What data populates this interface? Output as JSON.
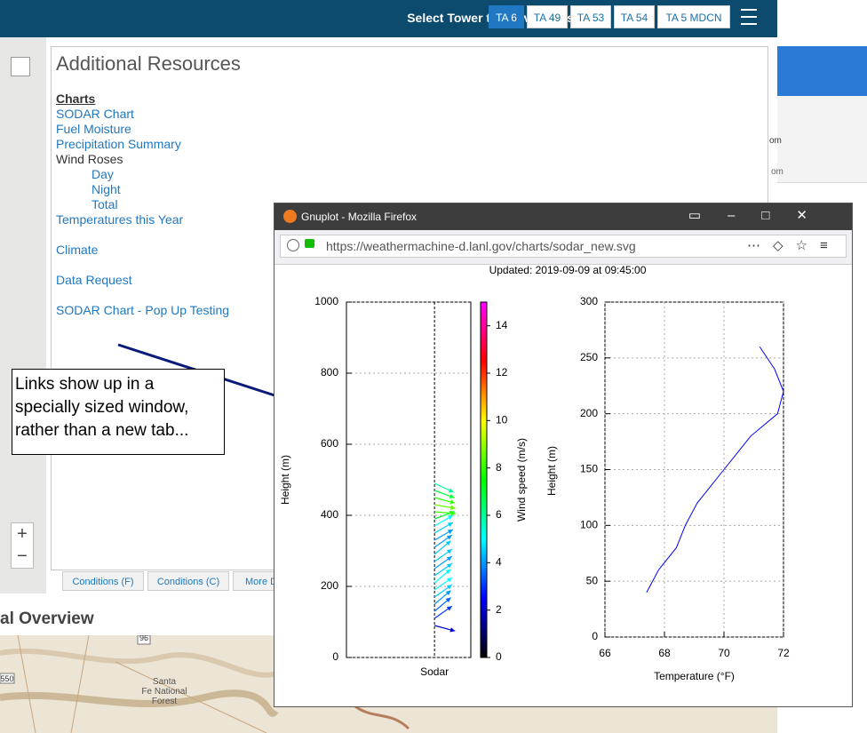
{
  "header": {
    "title": "Select Tower to View Details",
    "towers": [
      "TA 6",
      "TA 49",
      "TA 53",
      "TA 54",
      "TA 5 MDCN"
    ]
  },
  "resources": {
    "title": "Additional Resources",
    "heading": "Charts",
    "links": [
      "SODAR Chart",
      "Fuel Moisture",
      "Precipitation Summary"
    ],
    "wind_roses": {
      "label": "Wind Roses",
      "links": [
        "Day",
        "Night",
        "Total"
      ]
    },
    "temperatures": "Temperatures this Year",
    "climate": "Climate",
    "data_request": "Data Request",
    "popup_test": "SODAR Chart - Pop Up Testing"
  },
  "tabs": [
    "Conditions (F)",
    "Conditions (C)",
    "More D"
  ],
  "overview": {
    "title": "al Overview",
    "map_labels": [
      "96",
      "550"
    ],
    "forest": [
      "Santa",
      "Fe National",
      "Forest"
    ]
  },
  "callout": "Links show up in a specially sized window, rather than a new tab...",
  "background_window": {
    "labels": [
      "om",
      "om"
    ]
  },
  "browser": {
    "title": "Gnuplot - Mozilla Firefox",
    "url": "https://weathermachine-d.lanl.gov/charts/sodar_new.svg",
    "updated": "Updated: 2019-09-09 at 09:45:00"
  },
  "chart_data": [
    {
      "type": "vector",
      "xlabel": "Sodar",
      "ylabel": "Height (m)",
      "categories": [
        "Sodar"
      ],
      "ylim": [
        0,
        1000
      ],
      "yticks": [
        0,
        200,
        400,
        600,
        800,
        1000
      ],
      "grid": true,
      "heights": [
        90,
        110,
        130,
        150,
        170,
        190,
        210,
        230,
        250,
        270,
        290,
        310,
        330,
        350,
        370,
        390,
        410,
        430,
        450,
        470,
        490
      ],
      "speeds": [
        2.0,
        3.0,
        3.5,
        4.0,
        4.5,
        5.0,
        5.0,
        4.5,
        4.0,
        4.5,
        4.5,
        4.0,
        4.0,
        4.5,
        5.0,
        7.0,
        8.0,
        8.5,
        8.0,
        7.0,
        6.0
      ],
      "directions": [
        -15,
        35,
        40,
        40,
        35,
        35,
        40,
        35,
        35,
        35,
        40,
        35,
        30,
        30,
        30,
        20,
        -5,
        -10,
        -15,
        -20,
        -25
      ],
      "colorbar": {
        "label": "Wind speed (m/s)",
        "lim": [
          0,
          15
        ],
        "ticks": [
          0,
          2,
          4,
          6,
          8,
          10,
          12,
          14
        ],
        "palette": [
          "#000000",
          "#0000ff",
          "#00ffff",
          "#00ff00",
          "#ffff00",
          "#ff0000",
          "#ff00ff"
        ]
      }
    },
    {
      "type": "line",
      "xlabel": "Temperature (°F)",
      "ylabel": "Height (m)",
      "color": "#0000ff",
      "grid": true,
      "xlim": [
        66,
        72
      ],
      "xticks": [
        66,
        68,
        70,
        72
      ],
      "ylim": [
        0,
        300
      ],
      "yticks": [
        0,
        50,
        100,
        150,
        200,
        250,
        300
      ],
      "x": [
        67.4,
        67.8,
        68.4,
        68.7,
        69.1,
        70.0,
        70.9,
        71.8,
        71.9,
        72.0,
        71.7,
        71.2
      ],
      "y": [
        40,
        60,
        80,
        100,
        120,
        150,
        180,
        200,
        210,
        220,
        240,
        260
      ]
    }
  ]
}
